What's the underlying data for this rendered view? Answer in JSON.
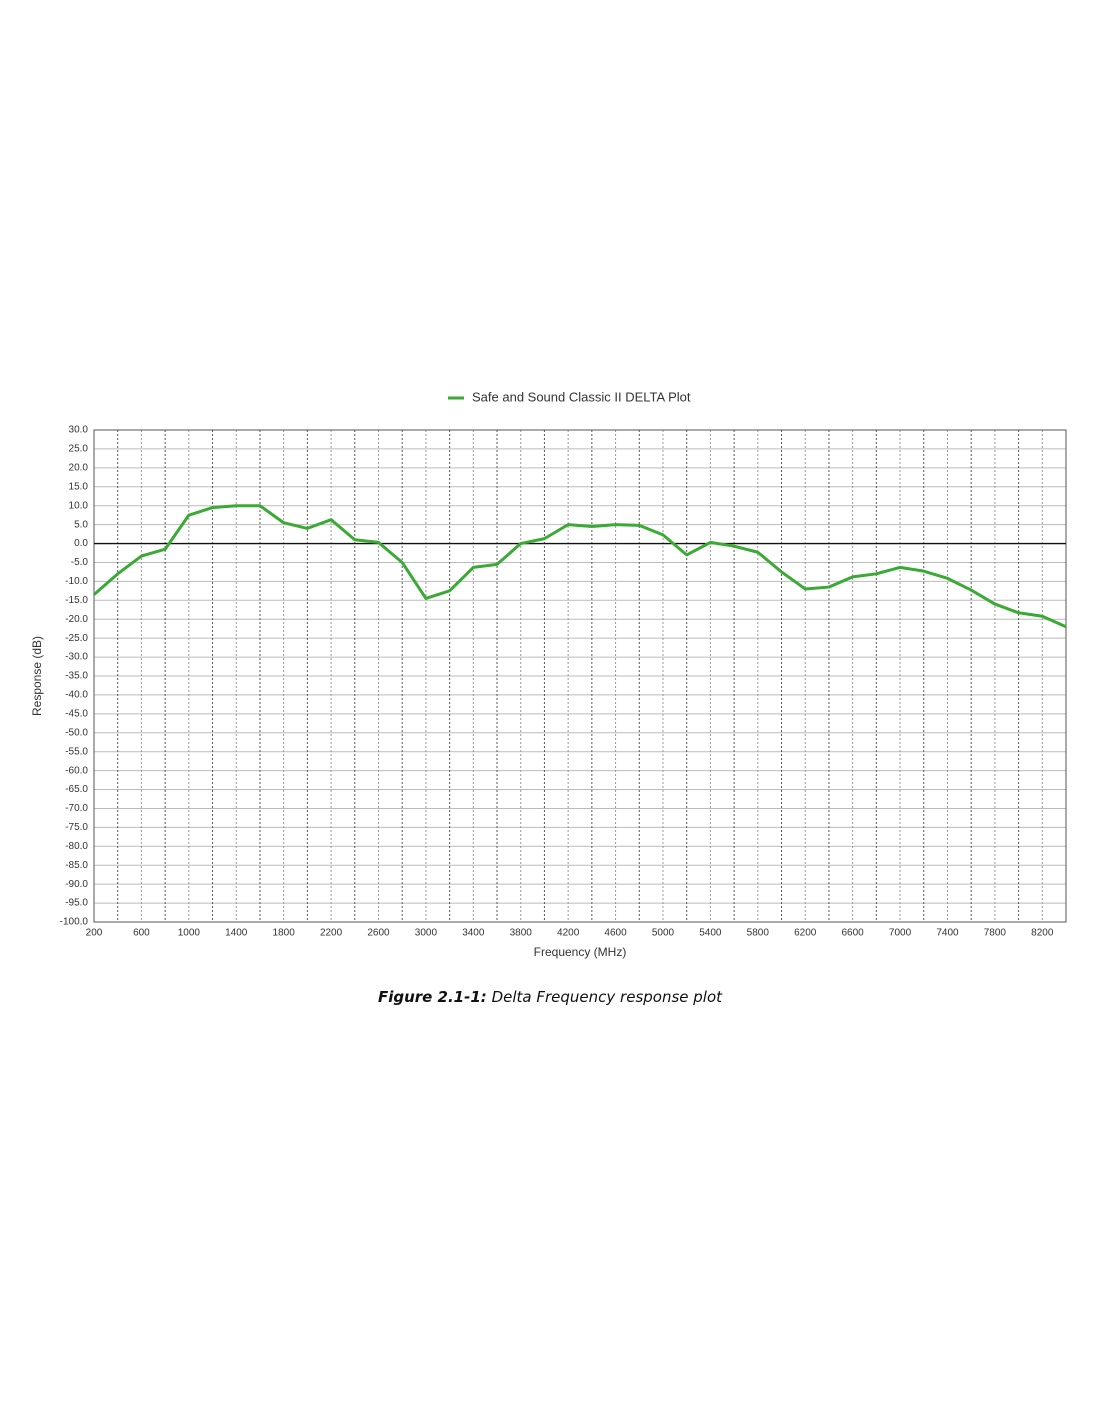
{
  "chart_data": {
    "type": "line",
    "legend_text": "Safe and Sound Classic II DELTA Plot",
    "x_label": "Frequency (MHz)",
    "y_label": "Response (dB)",
    "x": [
      200,
      400,
      600,
      800,
      1000,
      1200,
      1400,
      1600,
      1800,
      2000,
      2200,
      2400,
      2600,
      2800,
      3000,
      3200,
      3400,
      3600,
      3800,
      4000,
      4200,
      4400,
      4600,
      4800,
      5000,
      5200,
      5400,
      5600,
      5800,
      6000,
      6200,
      6400,
      6600,
      6800,
      7000,
      7200,
      7400,
      7600,
      7800,
      8000,
      8200,
      8400
    ],
    "series": [
      {
        "name": "Safe and Sound Classic II DELTA Plot",
        "color": "#3aaa35",
        "values": [
          -13.5,
          -8,
          -3.3,
          -1.5,
          7.5,
          9.5,
          10,
          10,
          5.5,
          4,
          6.3,
          1,
          0.3,
          -5,
          -14.5,
          -12.5,
          -6.3,
          -5.5,
          0,
          1.3,
          5,
          4.5,
          5,
          4.8,
          2.3,
          -3,
          0.3,
          -0.7,
          -2.3,
          -7.5,
          -12,
          -11.5,
          -8.8,
          -8,
          -6.3,
          -7.3,
          -9.2,
          -12.3,
          -16,
          -18.3,
          -19.2,
          -22
        ]
      }
    ],
    "xlim": [
      200,
      8400
    ],
    "xticks": [
      200,
      600,
      1000,
      1400,
      1800,
      2200,
      2600,
      3000,
      3400,
      3800,
      4200,
      4600,
      5000,
      5400,
      5800,
      6200,
      6600,
      7000,
      7400,
      7800,
      8200
    ],
    "ylim": [
      -100,
      30
    ],
    "yticks": [
      {
        "value": 30,
        "label": "30.0"
      },
      {
        "value": 25,
        "label": "25.0"
      },
      {
        "value": 20,
        "label": "20.0"
      },
      {
        "value": 15,
        "label": "15.0"
      },
      {
        "value": 10,
        "label": "10.0"
      },
      {
        "value": 5,
        "label": "5.0"
      },
      {
        "value": 0,
        "label": "0.0"
      },
      {
        "value": -5,
        "label": "-5.0"
      },
      {
        "value": -10,
        "label": "-10.0"
      },
      {
        "value": -15,
        "label": "-15.0"
      },
      {
        "value": -20,
        "label": "-20.0"
      },
      {
        "value": -25,
        "label": "-25.0"
      },
      {
        "value": -30,
        "label": "-30.0"
      },
      {
        "value": -35,
        "label": "-35.0"
      },
      {
        "value": -40,
        "label": "-40.0"
      },
      {
        "value": -45,
        "label": "-45.0"
      },
      {
        "value": -50,
        "label": "-50.0"
      },
      {
        "value": -55,
        "label": "-55.0"
      },
      {
        "value": -60,
        "label": "-60.0"
      },
      {
        "value": -65,
        "label": "-65.0"
      },
      {
        "value": -70,
        "label": "-70.0"
      },
      {
        "value": -75,
        "label": "-75.0"
      },
      {
        "value": -80,
        "label": "-80.0"
      },
      {
        "value": -85,
        "label": "-85.0"
      },
      {
        "value": -90,
        "label": "-90.0"
      },
      {
        "value": -95,
        "label": "-95.0"
      },
      {
        "value": -100,
        "label": "-100.0"
      }
    ],
    "grid": true,
    "zero_line": true,
    "x_minor_grid": true
  },
  "caption": {
    "label": "Figure 2.1-1:",
    "text": "Delta Frequency response plot"
  }
}
